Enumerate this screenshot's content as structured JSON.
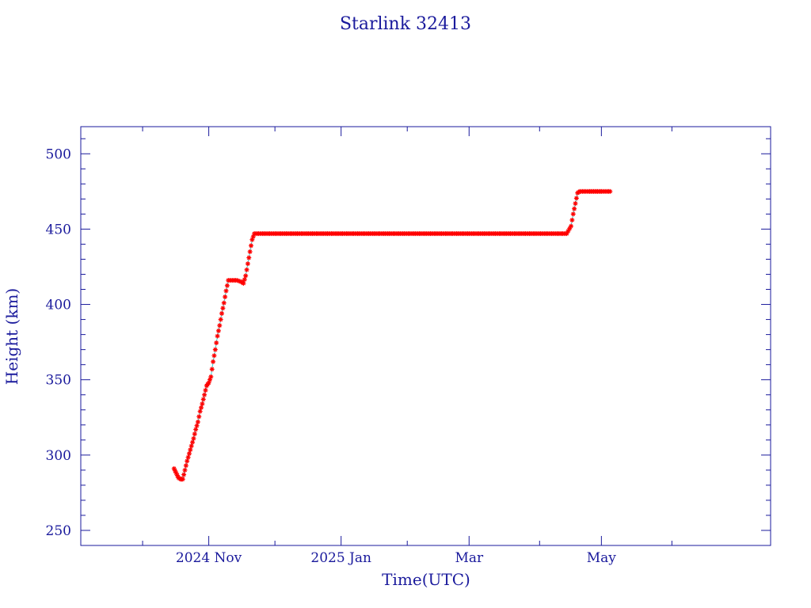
{
  "chart_data": {
    "type": "scatter",
    "title": "Starlink 32413",
    "xlabel": "Time(UTC)",
    "ylabel": "Height (km)",
    "x_tick_labels": [
      "2024 Nov",
      "2025 Jan",
      "Mar",
      "May"
    ],
    "x_ticks": [
      "2024-11-01",
      "2025-01-01",
      "2025-03-01",
      "2025-05-01"
    ],
    "xlim": [
      "2024-09-03",
      "2025-07-18"
    ],
    "yticks": [
      250,
      300,
      350,
      400,
      450,
      500
    ],
    "ylim": [
      240,
      518
    ],
    "grid": false,
    "colors": {
      "axes": "#1a1a9c",
      "marker": "#ff0000",
      "line": "#33d6d6"
    },
    "series": [
      {
        "marker": "star",
        "points": [
          [
            "2024-10-16",
            291
          ],
          [
            "2024-10-17",
            288
          ],
          [
            "2024-10-18",
            285
          ],
          [
            "2024-10-19",
            284
          ],
          [
            "2024-10-20",
            284
          ],
          [
            "2024-10-21",
            290
          ],
          [
            "2024-10-22",
            296
          ],
          [
            "2024-10-23",
            301
          ],
          [
            "2024-10-24",
            306
          ],
          [
            "2024-10-25",
            311
          ],
          [
            "2024-10-26",
            317
          ],
          [
            "2024-10-27",
            322
          ],
          [
            "2024-10-28",
            329
          ],
          [
            "2024-10-29",
            334
          ],
          [
            "2024-10-30",
            340
          ],
          [
            "2024-10-31",
            346
          ],
          [
            "2024-11-01",
            348
          ],
          [
            "2024-11-02",
            352
          ],
          [
            "2024-11-03",
            362
          ],
          [
            "2024-11-04",
            370
          ],
          [
            "2024-11-05",
            379
          ],
          [
            "2024-11-06",
            386
          ],
          [
            "2024-11-07",
            394
          ],
          [
            "2024-11-08",
            401
          ],
          [
            "2024-11-09",
            409
          ],
          [
            "2024-11-10",
            416
          ],
          [
            "2024-11-12",
            416
          ],
          [
            "2024-11-14",
            416
          ],
          [
            "2024-11-16",
            415
          ],
          [
            "2024-11-17",
            414
          ],
          [
            "2024-11-18",
            419
          ],
          [
            "2024-11-19",
            427
          ],
          [
            "2024-11-20",
            435
          ],
          [
            "2024-11-21",
            443
          ],
          [
            "2024-11-22",
            447
          ],
          [
            "2024-12-01",
            447
          ],
          [
            "2024-12-15",
            447
          ],
          [
            "2025-01-01",
            447
          ],
          [
            "2025-01-15",
            447
          ],
          [
            "2025-02-01",
            447
          ],
          [
            "2025-02-15",
            447
          ],
          [
            "2025-03-01",
            447
          ],
          [
            "2025-03-15",
            447
          ],
          [
            "2025-04-01",
            447
          ],
          [
            "2025-04-10",
            447
          ],
          [
            "2025-04-15",
            447
          ],
          [
            "2025-04-17",
            452
          ],
          [
            "2025-04-18",
            460
          ],
          [
            "2025-04-19",
            467
          ],
          [
            "2025-04-20",
            474
          ],
          [
            "2025-04-21",
            475
          ],
          [
            "2025-04-25",
            475
          ],
          [
            "2025-05-01",
            475
          ],
          [
            "2025-05-05",
            475
          ]
        ]
      }
    ]
  }
}
